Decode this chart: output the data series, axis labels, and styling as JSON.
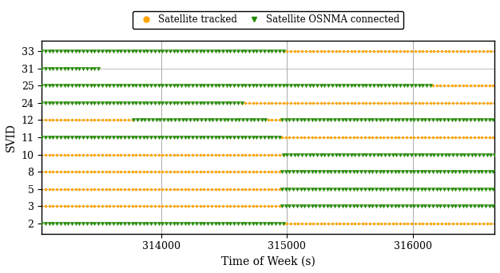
{
  "svids": [
    2,
    3,
    5,
    8,
    10,
    11,
    12,
    24,
    25,
    31,
    33
  ],
  "time_start": 313050,
  "time_end": 316650,
  "time_step": 30,
  "xlabel": "Time of Week (s)",
  "ylabel": "SVID",
  "legend_tracked": "Satellite tracked",
  "legend_osnma": "Satellite OSNMA connected",
  "orange": "#FFA500",
  "green": "#228B00",
  "gridline_color": "#AAAAAA",
  "segments": {
    "2": [
      {
        "start": 313050,
        "end": 314970,
        "type": "green"
      },
      {
        "start": 314970,
        "end": 316650,
        "type": "orange"
      }
    ],
    "3": [
      {
        "start": 313050,
        "end": 314960,
        "type": "orange"
      },
      {
        "start": 314960,
        "end": 316650,
        "type": "green"
      }
    ],
    "5": [
      {
        "start": 313050,
        "end": 314960,
        "type": "orange"
      },
      {
        "start": 314960,
        "end": 316650,
        "type": "green"
      }
    ],
    "8": [
      {
        "start": 313050,
        "end": 314960,
        "type": "orange"
      },
      {
        "start": 314960,
        "end": 316650,
        "type": "green"
      }
    ],
    "10": [
      {
        "start": 313050,
        "end": 314970,
        "type": "orange"
      },
      {
        "start": 314970,
        "end": 316650,
        "type": "green"
      }
    ],
    "11": [
      {
        "start": 313050,
        "end": 314960,
        "type": "green"
      },
      {
        "start": 314960,
        "end": 316650,
        "type": "orange"
      }
    ],
    "12": [
      {
        "start": 313050,
        "end": 313780,
        "type": "orange"
      },
      {
        "start": 313780,
        "end": 314850,
        "type": "green"
      },
      {
        "start": 314850,
        "end": 314960,
        "type": "orange"
      },
      {
        "start": 314960,
        "end": 316650,
        "type": "green"
      }
    ],
    "24": [
      {
        "start": 313050,
        "end": 314640,
        "type": "green"
      },
      {
        "start": 314640,
        "end": 316650,
        "type": "orange"
      }
    ],
    "25": [
      {
        "start": 313050,
        "end": 316160,
        "type": "green"
      },
      {
        "start": 316160,
        "end": 316650,
        "type": "orange"
      }
    ],
    "31": [
      {
        "start": 313050,
        "end": 313500,
        "type": "green"
      }
    ],
    "33": [
      {
        "start": 313050,
        "end": 314970,
        "type": "green"
      },
      {
        "start": 314970,
        "end": 316650,
        "type": "orange"
      }
    ]
  },
  "xticks": [
    314000,
    315000,
    316000
  ],
  "xlim": [
    313050,
    316650
  ],
  "ylim_low": -0.6,
  "ylim_high": 10.6,
  "marker_size_orange": 2.2,
  "marker_size_green": 3.2,
  "legend_marker_size": 5,
  "axis_fontsize": 9,
  "label_fontsize": 10,
  "legend_fontsize": 8.5,
  "grid_lw": 0.7,
  "background_color": "#FFFFFF"
}
